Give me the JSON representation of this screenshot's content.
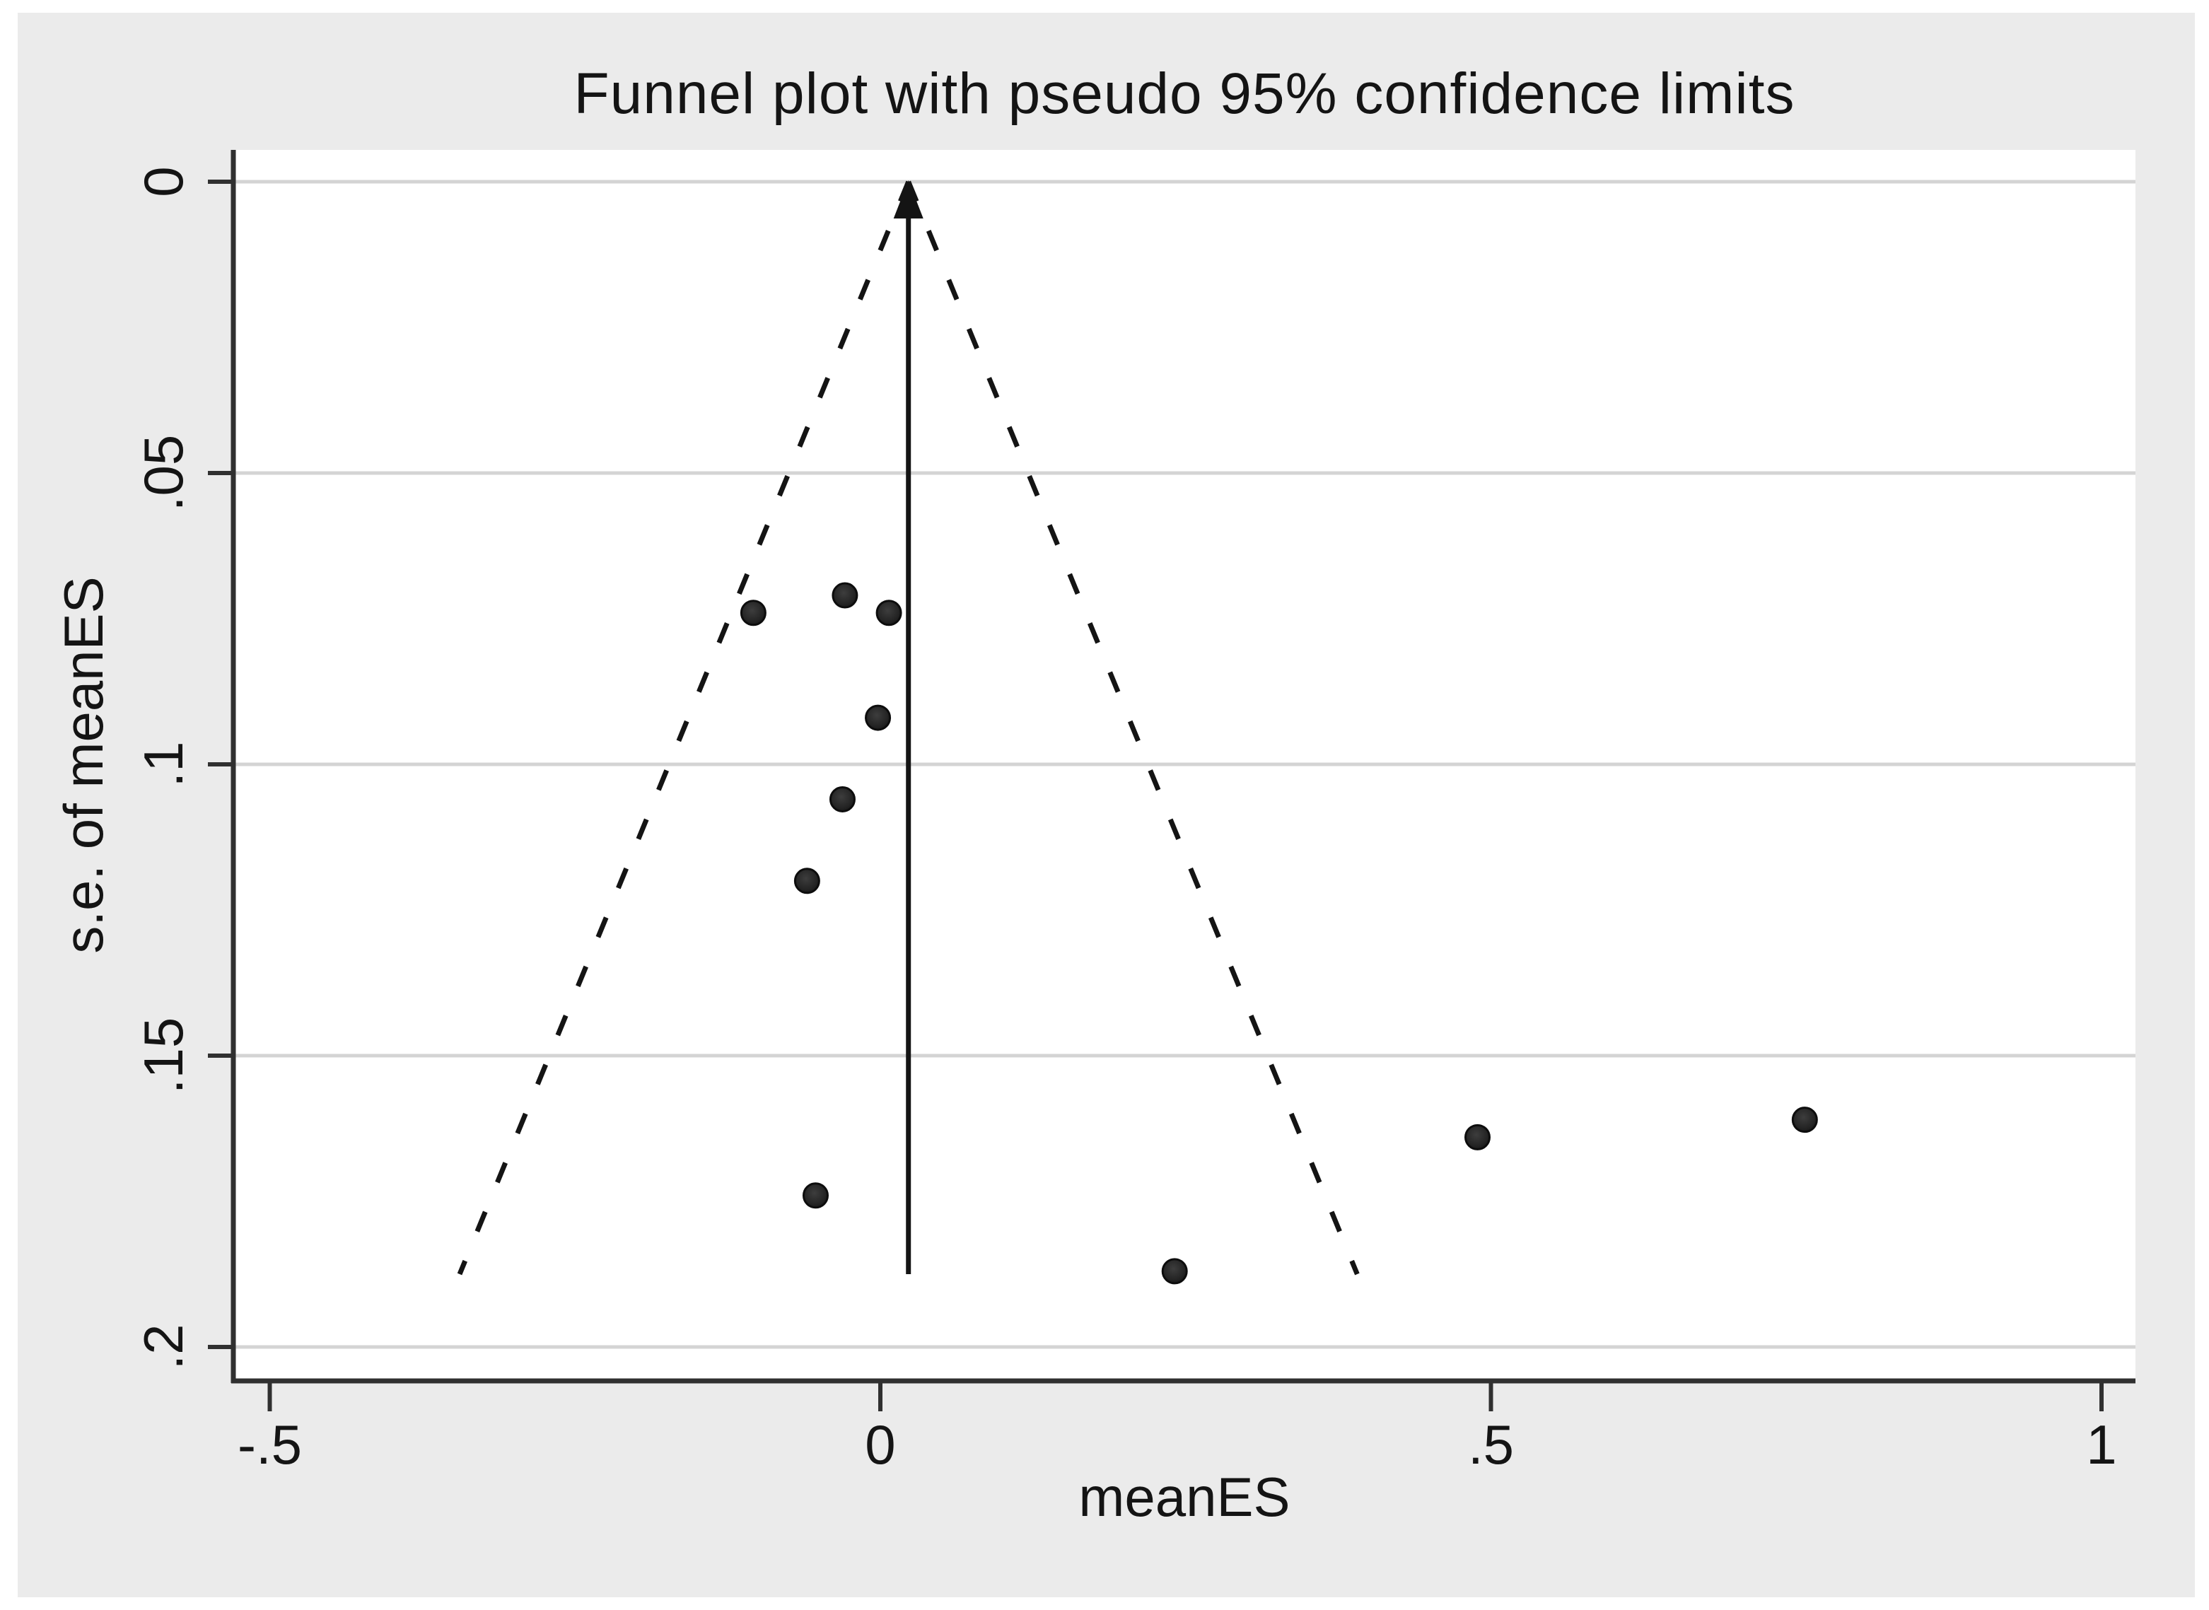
{
  "window": {
    "background_color": "#ffffff",
    "panel_color": "#ebebeb",
    "plot_background_color": "#ffffff"
  },
  "colors": {
    "grid": "#d4d4d4",
    "axis": "#303030",
    "text": "#141414",
    "marker_fill_center": "#3d3d3d",
    "marker_fill_edge": "#161616",
    "funnel_line": "#141414",
    "center_line": "#141414"
  },
  "chart_data": {
    "type": "scatter",
    "title": "Funnel plot with pseudo 95% confidence limits",
    "xlabel": "meanES",
    "ylabel": "s.e. of meanES",
    "x_ticks": [
      {
        "value": -0.5,
        "label": "-.5"
      },
      {
        "value": 0,
        "label": "0"
      },
      {
        "value": 0.5,
        "label": ".5"
      },
      {
        "value": 1,
        "label": "1"
      }
    ],
    "y_ticks": [
      {
        "value": 0,
        "label": "0"
      },
      {
        "value": 0.05,
        "label": ".05"
      },
      {
        "value": 0.1,
        "label": ".1"
      },
      {
        "value": 0.15,
        "label": ".15"
      },
      {
        "value": 0.2,
        "label": ".2"
      }
    ],
    "xlim": [
      -0.53,
      1.028
    ],
    "ylim_se": [
      -0.0055,
      0.206
    ],
    "y_axis_reversed": true,
    "grid": "horizontal",
    "legend": "none",
    "points": [
      {
        "meanES": -0.104,
        "se": 0.074
      },
      {
        "meanES": -0.029,
        "se": 0.071
      },
      {
        "meanES": 0.007,
        "se": 0.074
      },
      {
        "meanES": -0.002,
        "se": 0.092
      },
      {
        "meanES": -0.031,
        "se": 0.106
      },
      {
        "meanES": -0.06,
        "se": 0.12
      },
      {
        "meanES": -0.053,
        "se": 0.174
      },
      {
        "meanES": 0.241,
        "se": 0.187
      },
      {
        "meanES": 0.489,
        "se": 0.164
      },
      {
        "meanES": 0.757,
        "se": 0.161
      }
    ],
    "funnel": {
      "center_meanES": 0.023,
      "z": 1.96,
      "se_top": 0,
      "se_max": 0.1875,
      "line_style": "dashed"
    },
    "center_line": {
      "x": 0.023,
      "se_from": 0.1875,
      "se_to": 0,
      "arrow": "up"
    }
  }
}
